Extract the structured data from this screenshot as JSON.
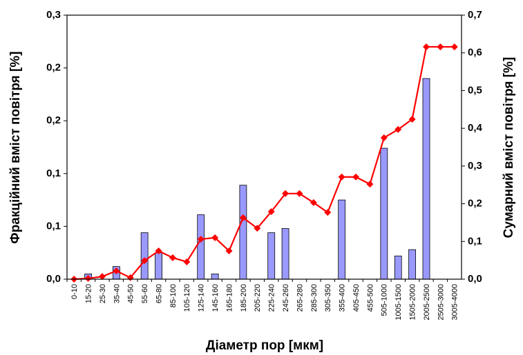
{
  "chart_data": {
    "type": "bar",
    "y_label": "Фракційний вміст повітря [%]",
    "y2_label": "Сумарний вміст повітря [%]",
    "x_label": "Діаметр пор [мкм]",
    "categories": [
      "0-10",
      "15-20",
      "25-30",
      "35-40",
      "45-50",
      "55-60",
      "65-80",
      "85-100",
      "105-120",
      "125-140",
      "145-160",
      "165-180",
      "185-200",
      "205-220",
      "225-240",
      "245-260",
      "265-280",
      "285-300",
      "305-350",
      "355-400",
      "405-450",
      "455-500",
      "505-1000",
      "1005-1500",
      "1505-2000",
      "2005-2500",
      "2505-3000",
      "3005-4000"
    ],
    "series": [
      {
        "type": "bar",
        "color": "#9999ff",
        "values": [
          0,
          0.005,
          0,
          0.012,
          0,
          0.044,
          0.025,
          0,
          0,
          0.061,
          0.005,
          0,
          0.089,
          0,
          0.044,
          0.048,
          0,
          0,
          0,
          0.075,
          0,
          0,
          0.124,
          0.022,
          0.028,
          0.19,
          0,
          0
        ]
      },
      {
        "type": "line",
        "axis": "y2",
        "color": "#ff0000",
        "values": [
          0,
          0.002,
          0.007,
          0.022,
          0.004,
          0.049,
          0.075,
          0.057,
          0.046,
          0.106,
          0.11,
          0.075,
          0.163,
          0.135,
          0.179,
          0.227,
          0.227,
          0.203,
          0.177,
          0.271,
          0.271,
          0.252,
          0.375,
          0.397,
          0.424,
          0.616,
          0.616,
          0.616
        ]
      }
    ],
    "ylim": [
      0,
      0.25
    ],
    "yticks": [
      {
        "value": 0,
        "label": "0,0"
      },
      {
        "value": 0.05,
        "label": "0,1"
      },
      {
        "value": 0.1,
        "label": "0,1"
      },
      {
        "value": 0.15,
        "label": "0,2"
      },
      {
        "value": 0.2,
        "label": "0,2"
      },
      {
        "value": 0.25,
        "label": "0,3"
      }
    ],
    "y2lim": [
      0,
      0.7
    ],
    "y2ticks": [
      {
        "value": 0,
        "label": "0,0"
      },
      {
        "value": 0.1,
        "label": "0,1"
      },
      {
        "value": 0.2,
        "label": "0,2"
      },
      {
        "value": 0.3,
        "label": "0,3"
      },
      {
        "value": 0.4,
        "label": "0,4"
      },
      {
        "value": 0.5,
        "label": "0,5"
      },
      {
        "value": 0.6,
        "label": "0,6"
      },
      {
        "value": 0.7,
        "label": "0,7"
      }
    ],
    "grid": false
  }
}
